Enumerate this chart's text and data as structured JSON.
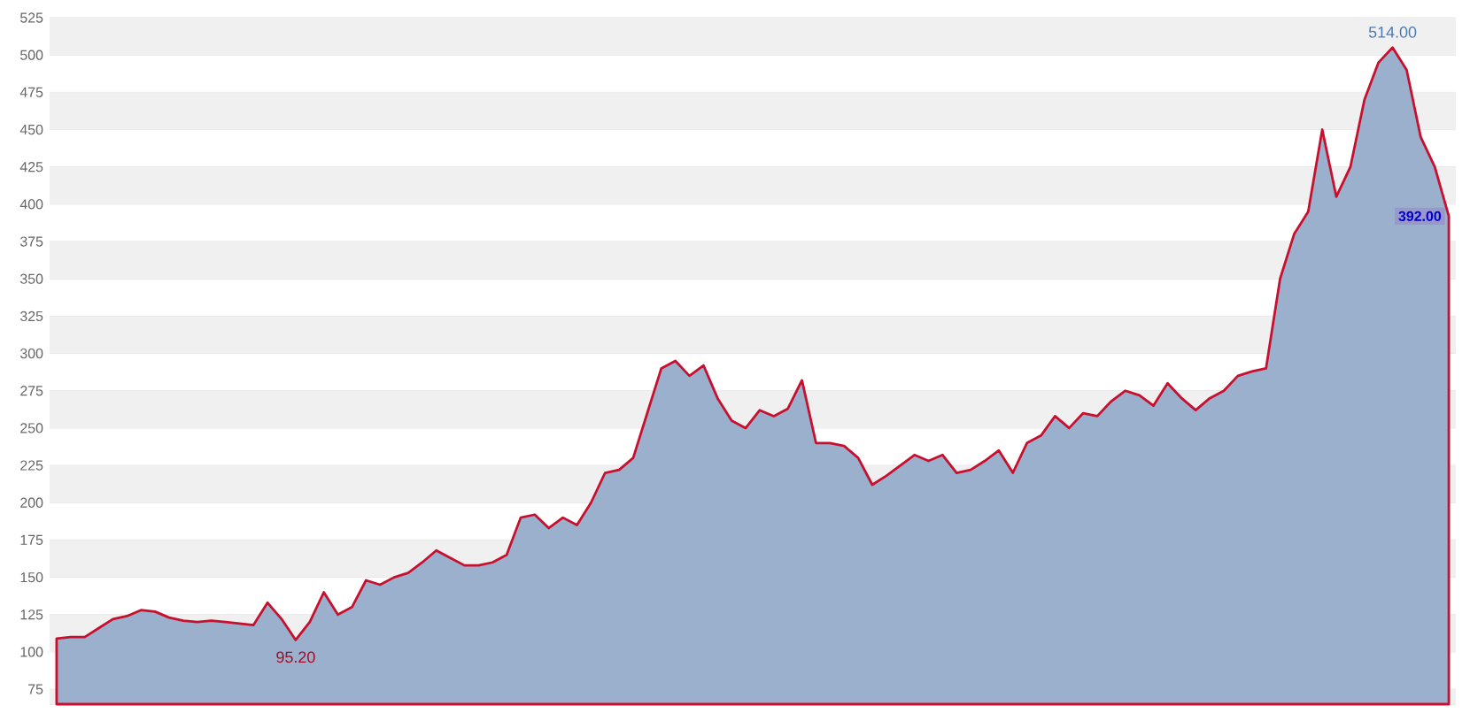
{
  "chart_data": {
    "type": "area",
    "categories": [
      null,
      null,
      null,
      null,
      null,
      null,
      null,
      null,
      null,
      null,
      null,
      null,
      null,
      null,
      null,
      null,
      null,
      null,
      null,
      null,
      null,
      null,
      null,
      null,
      null,
      null,
      null,
      null,
      null,
      null,
      null,
      null,
      null,
      null,
      null,
      null,
      null,
      null,
      null,
      null,
      null,
      null,
      null,
      null,
      null,
      null,
      null,
      null,
      null,
      null,
      null,
      null,
      null,
      null,
      null,
      null,
      null,
      null,
      null,
      null,
      null,
      null,
      null,
      null,
      null,
      null,
      null,
      null,
      null,
      null,
      null,
      null,
      null,
      null,
      null,
      null,
      null,
      null,
      null,
      null,
      null,
      null,
      null,
      null,
      null,
      null,
      null,
      null,
      null,
      null,
      null,
      null,
      null,
      null,
      null,
      null,
      null,
      null,
      null,
      null
    ],
    "values": [
      109,
      110,
      110,
      116,
      122,
      124,
      128,
      127,
      123,
      121,
      120,
      121,
      120,
      119,
      118,
      133,
      122,
      108,
      120,
      140,
      125,
      130,
      148,
      145,
      150,
      153,
      160,
      168,
      163,
      158,
      158,
      160,
      165,
      190,
      192,
      183,
      190,
      185,
      200,
      220,
      222,
      230,
      260,
      290,
      295,
      285,
      292,
      270,
      255,
      250,
      262,
      258,
      263,
      282,
      240,
      240,
      238,
      230,
      212,
      218,
      225,
      232,
      228,
      232,
      220,
      222,
      228,
      235,
      220,
      240,
      245,
      258,
      250,
      260,
      258,
      268,
      275,
      272,
      265,
      280,
      270,
      262,
      270,
      275,
      285,
      288,
      290,
      350,
      380,
      395,
      450,
      405,
      425,
      470,
      495,
      505,
      490,
      445,
      425,
      392
    ],
    "color": "#c8102e",
    "ylim": [
      65,
      525
    ],
    "yticks": [
      75,
      100,
      125,
      150,
      175,
      200,
      225,
      250,
      275,
      300,
      325,
      350,
      375,
      400,
      425,
      450,
      475,
      500,
      525
    ],
    "grid": "y",
    "annotations": [
      "514.00",
      "95.20",
      "392.00"
    ]
  }
}
